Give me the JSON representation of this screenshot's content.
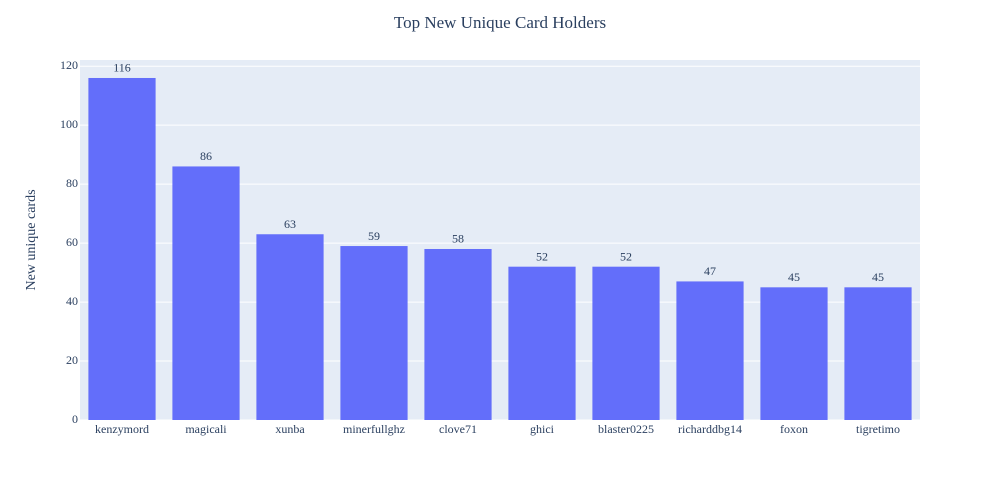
{
  "chart_data": {
    "type": "bar",
    "title": "Top New Unique Card Holders",
    "y_label": "New unique cards",
    "categories": [
      "kenzymord",
      "magicali",
      "xunba",
      "minerfullghz",
      "clove71",
      "ghici",
      "blaster0225",
      "richarddbg14",
      "foxon",
      "tigretimo"
    ],
    "values": [
      116,
      86,
      63,
      59,
      58,
      52,
      52,
      47,
      45,
      45
    ],
    "color": "#636efa",
    "ylim": [
      0,
      122.1
    ],
    "yticks": [
      0,
      20,
      40,
      60,
      80,
      100,
      120
    ],
    "grid": true
  }
}
